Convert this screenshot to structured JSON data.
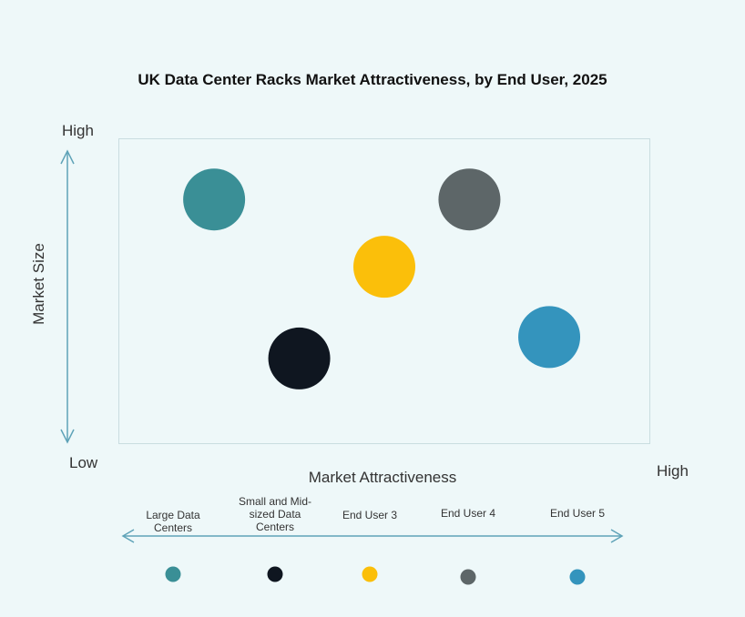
{
  "chart_data": {
    "type": "scatter",
    "title": "UK Data Center Racks Market Attractiveness,  by End User, 2025",
    "xlabel": "Market Attractiveness",
    "ylabel": "Market Size",
    "x_axis_ends": {
      "low": "",
      "high": "High"
    },
    "y_axis_ends": {
      "low": "Low",
      "high": "High"
    },
    "xlim": [
      0,
      100
    ],
    "ylim": [
      0,
      100
    ],
    "grid": false,
    "legend_placement": "bottom",
    "series": [
      {
        "name": "Large Data Centers",
        "x": 18,
        "y": 80,
        "color": "#3a8f96"
      },
      {
        "name": "Small and Mid-sized Data Centers",
        "x": 34,
        "y": 28,
        "color": "#0f1620"
      },
      {
        "name": "End User 3",
        "x": 50,
        "y": 58,
        "color": "#fbbf0a"
      },
      {
        "name": "End User 4",
        "x": 66,
        "y": 80,
        "color": "#5d6668"
      },
      {
        "name": "End User 5",
        "x": 81,
        "y": 35,
        "color": "#3494bd"
      }
    ],
    "axis_color": "#5fa3b8"
  }
}
